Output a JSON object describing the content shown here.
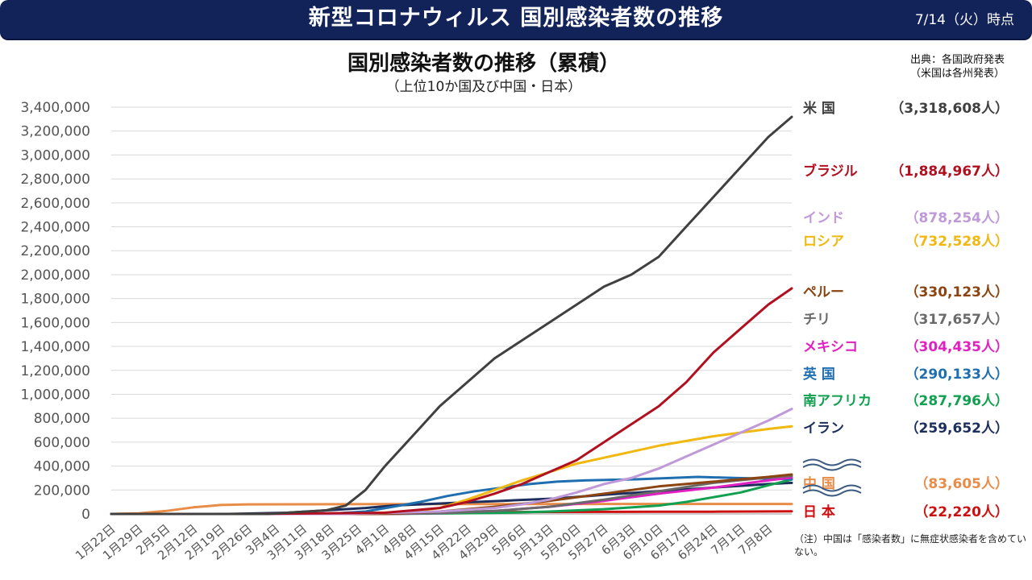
{
  "header": {
    "title": "新型コロナウィルス 国別感染者数の推移",
    "date": "7/14（火）時点"
  },
  "source_line1": "出典：各国政府発表",
  "source_line2": "（米国は各州発表）",
  "note": "（注）中国は「感染者数」に無症状感染者を含めていない。",
  "chart_data": {
    "type": "line",
    "title": "国別感染者数の推移（累積）",
    "subtitle": "（上位10か国及び中国・日本）",
    "y_ticks": [
      "3,400,000",
      "3,200,000",
      "3,000,000",
      "2,800,000",
      "2,600,000",
      "2,400,000",
      "2,200,000",
      "2,000,000",
      "1,800,000",
      "1,600,000",
      "1,400,000",
      "1,200,000",
      "1,000,000",
      "800,000",
      "600,000",
      "400,000",
      "200,000",
      "0"
    ],
    "ylim": [
      0,
      3400000
    ],
    "x_ticks": [
      "1月22日",
      "1月29日",
      "2月5日",
      "2月12日",
      "2月19日",
      "2月26日",
      "3月4日",
      "3月11日",
      "3月18日",
      "3月25日",
      "4月1日",
      "4月8日",
      "4月15日",
      "4月22日",
      "4月29日",
      "5月6日",
      "5月13日",
      "5月20日",
      "5月27日",
      "6月3日",
      "6月10日",
      "6月17日",
      "6月24日",
      "7月1日",
      "7月8日"
    ],
    "x_range_days": [
      0,
      174
    ],
    "series": [
      {
        "name": "米 国",
        "label": "（3,318,608人）",
        "color": "#404040",
        "final": 3318608,
        "points": [
          [
            0,
            0
          ],
          [
            40,
            100
          ],
          [
            55,
            30000
          ],
          [
            60,
            70000
          ],
          [
            65,
            200000
          ],
          [
            70,
            400000
          ],
          [
            77,
            650000
          ],
          [
            84,
            900000
          ],
          [
            91,
            1100000
          ],
          [
            98,
            1300000
          ],
          [
            105,
            1450000
          ],
          [
            112,
            1600000
          ],
          [
            119,
            1750000
          ],
          [
            126,
            1900000
          ],
          [
            133,
            2000000
          ],
          [
            140,
            2150000
          ],
          [
            147,
            2400000
          ],
          [
            154,
            2650000
          ],
          [
            161,
            2900000
          ],
          [
            168,
            3150000
          ],
          [
            174,
            3318608
          ]
        ]
      },
      {
        "name": "ブラジル",
        "label": "（1,884,967人）",
        "color": "#b01020",
        "final": 1884967,
        "points": [
          [
            0,
            0
          ],
          [
            35,
            0
          ],
          [
            70,
            10000
          ],
          [
            84,
            50000
          ],
          [
            91,
            100000
          ],
          [
            98,
            170000
          ],
          [
            105,
            250000
          ],
          [
            112,
            350000
          ],
          [
            119,
            450000
          ],
          [
            126,
            600000
          ],
          [
            133,
            750000
          ],
          [
            140,
            900000
          ],
          [
            147,
            1100000
          ],
          [
            154,
            1350000
          ],
          [
            161,
            1550000
          ],
          [
            168,
            1750000
          ],
          [
            174,
            1884967
          ]
        ]
      },
      {
        "name": "インド",
        "label": "（878,254人）",
        "color": "#c09ad8",
        "final": 878254,
        "points": [
          [
            0,
            0
          ],
          [
            60,
            0
          ],
          [
            84,
            20000
          ],
          [
            98,
            50000
          ],
          [
            105,
            80000
          ],
          [
            112,
            120000
          ],
          [
            119,
            180000
          ],
          [
            126,
            250000
          ],
          [
            133,
            300000
          ],
          [
            140,
            380000
          ],
          [
            147,
            480000
          ],
          [
            154,
            580000
          ],
          [
            161,
            680000
          ],
          [
            168,
            780000
          ],
          [
            174,
            878254
          ]
        ]
      },
      {
        "name": "ロシア",
        "label": "（732,528人）",
        "color": "#f0b810",
        "final": 732528,
        "points": [
          [
            0,
            0
          ],
          [
            60,
            0
          ],
          [
            77,
            20000
          ],
          [
            84,
            50000
          ],
          [
            91,
            120000
          ],
          [
            98,
            200000
          ],
          [
            105,
            280000
          ],
          [
            112,
            350000
          ],
          [
            119,
            420000
          ],
          [
            126,
            470000
          ],
          [
            133,
            520000
          ],
          [
            140,
            570000
          ],
          [
            147,
            610000
          ],
          [
            154,
            650000
          ],
          [
            161,
            680000
          ],
          [
            168,
            710000
          ],
          [
            174,
            732528
          ]
        ]
      },
      {
        "name": "ペルー",
        "label": "（330,123人）",
        "color": "#8b4513",
        "final": 330123,
        "points": [
          [
            0,
            0
          ],
          [
            70,
            0
          ],
          [
            84,
            20000
          ],
          [
            98,
            60000
          ],
          [
            112,
            110000
          ],
          [
            126,
            170000
          ],
          [
            140,
            230000
          ],
          [
            154,
            270000
          ],
          [
            168,
            310000
          ],
          [
            174,
            330123
          ]
        ]
      },
      {
        "name": "チリ",
        "label": "（317,657人）",
        "color": "#6a6a6a",
        "final": 317657,
        "points": [
          [
            0,
            0
          ],
          [
            70,
            0
          ],
          [
            84,
            10000
          ],
          [
            98,
            25000
          ],
          [
            112,
            60000
          ],
          [
            126,
            120000
          ],
          [
            140,
            190000
          ],
          [
            154,
            260000
          ],
          [
            168,
            305000
          ],
          [
            174,
            317657
          ]
        ]
      },
      {
        "name": "メキシコ",
        "label": "（304,435人）",
        "color": "#e020c0",
        "final": 304435,
        "points": [
          [
            0,
            0
          ],
          [
            70,
            0
          ],
          [
            84,
            8000
          ],
          [
            98,
            25000
          ],
          [
            112,
            60000
          ],
          [
            126,
            110000
          ],
          [
            140,
            170000
          ],
          [
            154,
            220000
          ],
          [
            168,
            280000
          ],
          [
            174,
            304435
          ]
        ]
      },
      {
        "name": "英 国",
        "label": "（290,133人）",
        "color": "#1f6fb0",
        "final": 290133,
        "points": [
          [
            0,
            0
          ],
          [
            55,
            0
          ],
          [
            65,
            20000
          ],
          [
            72,
            60000
          ],
          [
            79,
            100000
          ],
          [
            86,
            150000
          ],
          [
            93,
            190000
          ],
          [
            100,
            220000
          ],
          [
            107,
            250000
          ],
          [
            114,
            270000
          ],
          [
            121,
            280000
          ],
          [
            135,
            290000
          ],
          [
            150,
            310000
          ],
          [
            160,
            300000
          ],
          [
            174,
            290133
          ]
        ]
      },
      {
        "name": "南アフリカ",
        "label": "（287,796人）",
        "color": "#10a050",
        "final": 287796,
        "points": [
          [
            0,
            0
          ],
          [
            70,
            0
          ],
          [
            98,
            8000
          ],
          [
            112,
            20000
          ],
          [
            126,
            40000
          ],
          [
            140,
            70000
          ],
          [
            147,
            100000
          ],
          [
            154,
            140000
          ],
          [
            161,
            180000
          ],
          [
            168,
            240000
          ],
          [
            174,
            287796
          ]
        ]
      },
      {
        "name": "イラン",
        "label": "（259,652人）",
        "color": "#1c2e5c",
        "final": 259652,
        "points": [
          [
            0,
            0
          ],
          [
            30,
            0
          ],
          [
            45,
            10000
          ],
          [
            55,
            30000
          ],
          [
            65,
            50000
          ],
          [
            72,
            70000
          ],
          [
            79,
            80000
          ],
          [
            86,
            90000
          ],
          [
            93,
            100000
          ],
          [
            100,
            110000
          ],
          [
            114,
            130000
          ],
          [
            126,
            160000
          ],
          [
            140,
            190000
          ],
          [
            154,
            220000
          ],
          [
            168,
            250000
          ],
          [
            174,
            259652
          ]
        ]
      },
      {
        "name": "中 国",
        "label": "（83,605人）",
        "color": "#e88c48",
        "final": 83605,
        "points": [
          [
            0,
            0
          ],
          [
            7,
            5000
          ],
          [
            14,
            25000
          ],
          [
            21,
            55000
          ],
          [
            28,
            75000
          ],
          [
            35,
            80000
          ],
          [
            49,
            81000
          ],
          [
            70,
            82000
          ],
          [
            100,
            83000
          ],
          [
            174,
            83605
          ]
        ]
      },
      {
        "name": "日 本",
        "label": "（22,220人）",
        "color": "#cc1010",
        "final": 22220,
        "points": [
          [
            0,
            0
          ],
          [
            60,
            500
          ],
          [
            70,
            2000
          ],
          [
            77,
            5000
          ],
          [
            84,
            10000
          ],
          [
            91,
            14000
          ],
          [
            98,
            16000
          ],
          [
            112,
            17000
          ],
          [
            126,
            17500
          ],
          [
            140,
            18000
          ],
          [
            154,
            19000
          ],
          [
            163,
            20000
          ],
          [
            174,
            22220
          ]
        ]
      }
    ]
  }
}
